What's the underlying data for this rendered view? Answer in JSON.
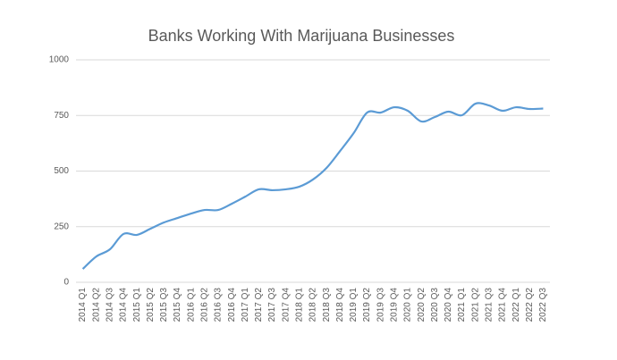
{
  "chart_data": {
    "type": "line",
    "title": "Banks Working With Marijuana Businesses",
    "categories": [
      "2014 Q1",
      "2014 Q2",
      "2014 Q3",
      "2014 Q4",
      "2015 Q1",
      "2015 Q2",
      "2015 Q3",
      "2015 Q4",
      "2016 Q1",
      "2016 Q2",
      "2016 Q3",
      "2016 Q4",
      "2017 Q1",
      "2017 Q2",
      "2017 Q3",
      "2017 Q4",
      "2018 Q1",
      "2018 Q2",
      "2018 Q3",
      "2018 Q4",
      "2019 Q1",
      "2019 Q2",
      "2019 Q3",
      "2019 Q4",
      "2020 Q1",
      "2020 Q2",
      "2020 Q3",
      "2020 Q4",
      "2021 Q1",
      "2021 Q2",
      "2021 Q3",
      "2021 Q4",
      "2022 Q1",
      "2022 Q2",
      "2022 Q3"
    ],
    "values": [
      60,
      116,
      148,
      217,
      213,
      241,
      269,
      289,
      309,
      325,
      325,
      353,
      385,
      418,
      414,
      418,
      430,
      462,
      514,
      590,
      670,
      763,
      763,
      787,
      771,
      723,
      743,
      767,
      751,
      803,
      795,
      771,
      787,
      779,
      781
    ],
    "color": "#5b9bd5",
    "ylim": [
      0,
      1000
    ],
    "yticks": [
      0,
      250,
      500,
      750,
      1000
    ],
    "grid": true
  }
}
